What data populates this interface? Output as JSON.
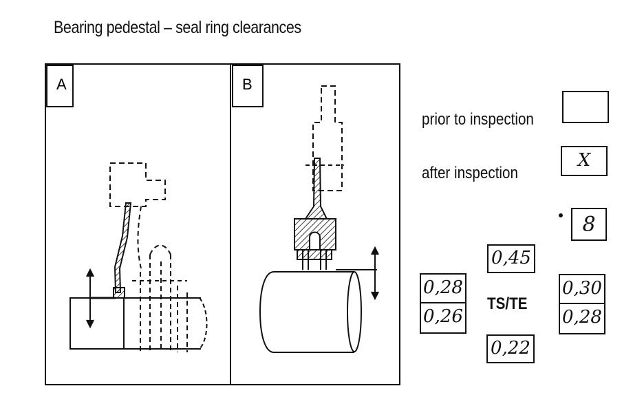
{
  "title": "Bearing pedestal – seal ring clearances",
  "panels": {
    "a_label": "A",
    "b_label": "B"
  },
  "legend": {
    "prior_label": "prior to inspection",
    "prior_value": "",
    "after_label": "after inspection",
    "after_value": "X",
    "marked_value": "8"
  },
  "clearances": {
    "center_label": "TS/TE",
    "top": "0,45",
    "bottom": "0,22",
    "left_upper": "0,28",
    "left_lower": "0,26",
    "right_upper": "0,30",
    "right_lower": "0,28"
  }
}
